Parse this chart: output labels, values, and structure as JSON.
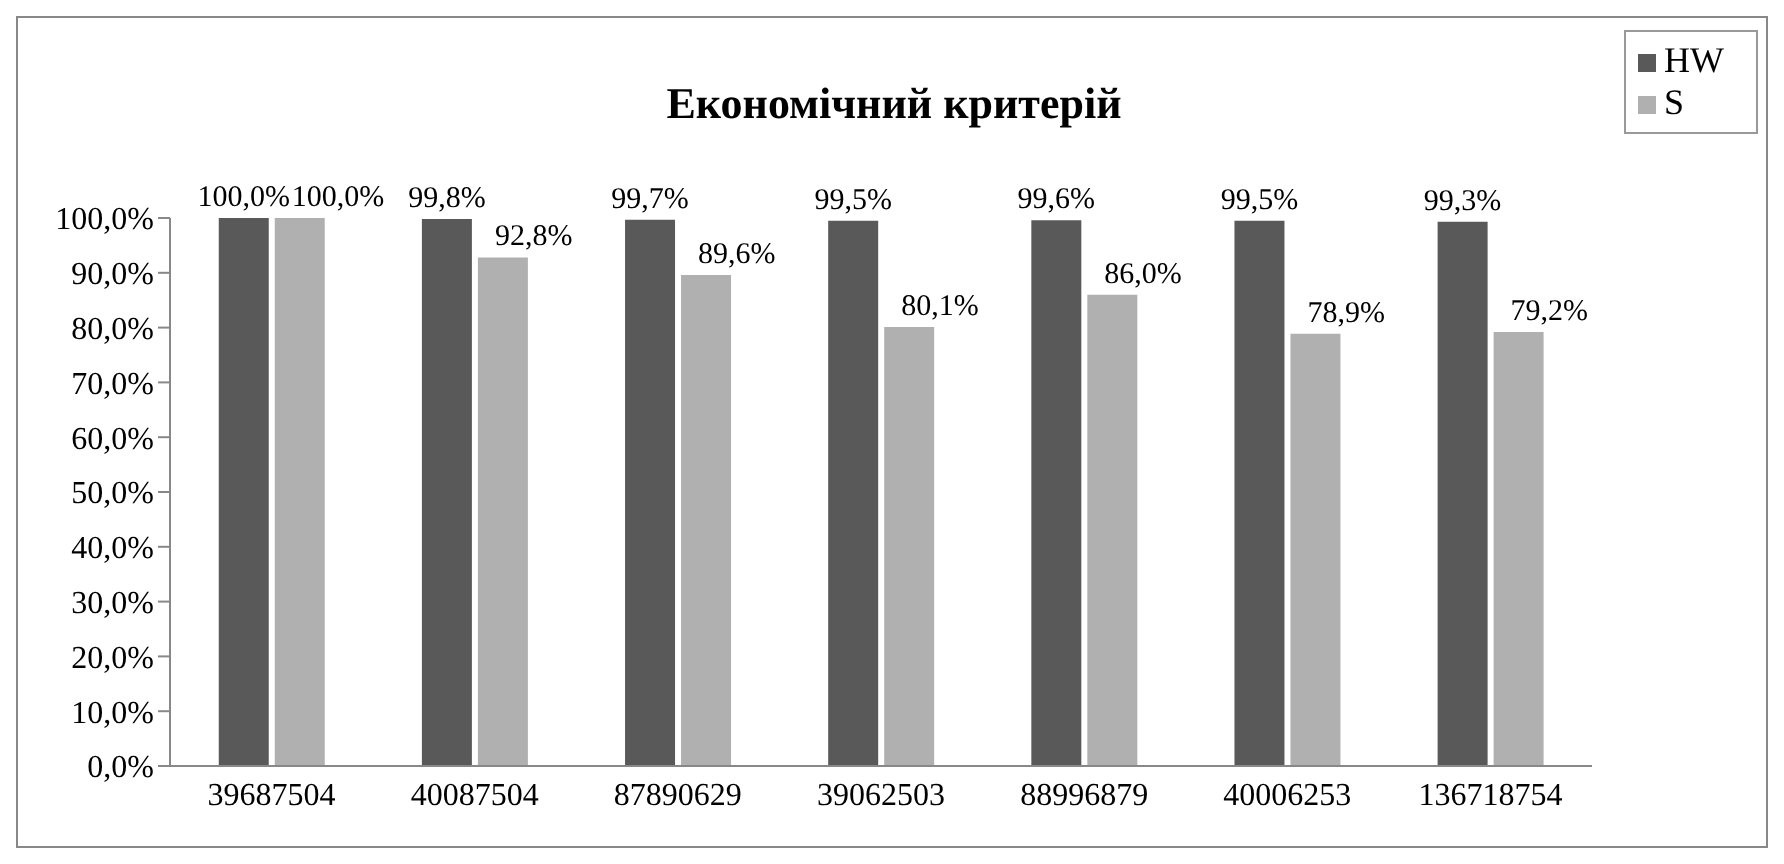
{
  "chart_data": {
    "type": "bar",
    "title": "Економічний критерій",
    "categories": [
      "39687504",
      "40087504",
      "87890629",
      "39062503",
      "88996879",
      "40006253",
      "136718754"
    ],
    "series": [
      {
        "name": "HW",
        "color": "#595959",
        "values": [
          100.0,
          99.8,
          99.7,
          99.5,
          99.6,
          99.5,
          99.3
        ],
        "value_labels": [
          "100,0%",
          "99,8%",
          "99,7%",
          "99,5%",
          "99,6%",
          "99,5%",
          "99,3%"
        ]
      },
      {
        "name": "S",
        "color": "#b0b0b0",
        "values": [
          100.0,
          92.8,
          89.6,
          80.1,
          86.0,
          78.9,
          79.2
        ],
        "value_labels": [
          "100,0%",
          "92,8%",
          "89,6%",
          "80,1%",
          "86,0%",
          "78,9%",
          "79,2%"
        ]
      }
    ],
    "ylim": [
      0,
      100
    ],
    "yticks": [
      {
        "value": 0,
        "label": "0,0%"
      },
      {
        "value": 10,
        "label": "10,0%"
      },
      {
        "value": 20,
        "label": "20,0%"
      },
      {
        "value": 30,
        "label": "30,0%"
      },
      {
        "value": 40,
        "label": "40,0%"
      },
      {
        "value": 50,
        "label": "50,0%"
      },
      {
        "value": 60,
        "label": "60,0%"
      },
      {
        "value": 70,
        "label": "70,0%"
      },
      {
        "value": 80,
        "label": "80,0%"
      },
      {
        "value": 90,
        "label": "90,0%"
      },
      {
        "value": 100,
        "label": "100,0%"
      }
    ],
    "grid": false,
    "legend": "top right"
  }
}
